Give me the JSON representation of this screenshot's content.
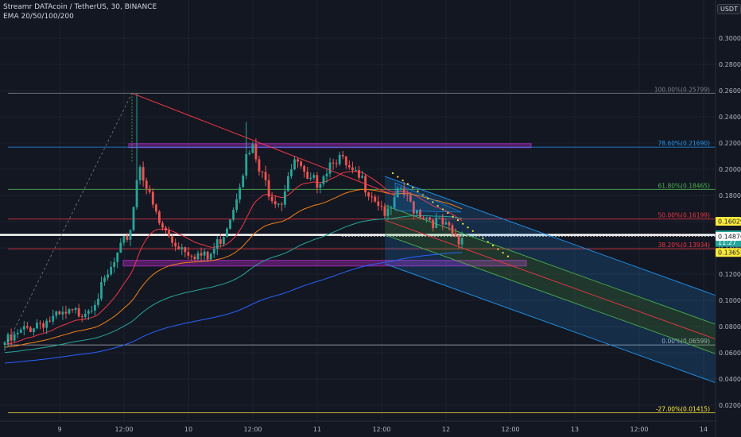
{
  "header": {
    "symbol_line": "Streamr DATAcoin / TetherUS, 30, BINANCE",
    "indicator_line": "EMA 20/50/100/200"
  },
  "currency_button": "USDT",
  "chart_data": {
    "type": "candlestick",
    "title": "Streamr DATAcoin / TetherUS, 30, BINANCE",
    "indicator": "EMA 20/50/100/200",
    "ylim": [
      0,
      0.32
    ],
    "y_ticks": [
      "0.02000",
      "0.04000",
      "0.06000",
      "0.08000",
      "0.10000",
      "0.12000",
      "0.14000",
      "0.16000",
      "0.18000",
      "0.20000",
      "0.22000",
      "0.24000",
      "0.26000",
      "0.28000",
      "0.30000"
    ],
    "x_ticks": [
      "9",
      "12:00",
      "10",
      "12:00",
      "11",
      "12:00",
      "12",
      "12:00",
      "13",
      "12:00",
      "14"
    ],
    "fib_levels": [
      {
        "label": "100.00%(0.25799)",
        "value": 0.25799,
        "color": "#787b86"
      },
      {
        "label": "78.60%(0.21690)",
        "value": 0.2169,
        "color": "#2196f3"
      },
      {
        "label": "61.80%(0.18465)",
        "value": 0.18465,
        "color": "#4caf50"
      },
      {
        "label": "50.00%(0.16199)",
        "value": 0.16199,
        "color": "#f23645"
      },
      {
        "label": "38.20%(0.13934)",
        "value": 0.13934,
        "color": "#f23645"
      },
      {
        "label": "0.00%(0.06599)",
        "value": 0.06599,
        "color": "#b2b5be"
      },
      {
        "label": "-27.00%(0.01415)",
        "value": 0.01415,
        "color": "#ffeb3b"
      }
    ],
    "price_badges": [
      {
        "label": "0.16029",
        "value": 0.16029,
        "bg": "#ffeb3b",
        "fg": "#131722"
      },
      {
        "label": "0.14991",
        "value": 0.14991,
        "bg": "#26a69a",
        "fg": "#ffffff"
      },
      {
        "label": "11:27",
        "value": 0.1442,
        "bg": "#26a69a",
        "fg": "#ffffff"
      },
      {
        "label": "0.14876",
        "value": 0.14876,
        "bg": "#ffffff",
        "fg": "#131722"
      },
      {
        "label": "0.13655",
        "value": 0.13655,
        "bg": "#ffeb3b",
        "fg": "#131722"
      }
    ],
    "current_price": 0.14991,
    "colors": {
      "up": "#26a69a",
      "down": "#ef5350",
      "ema20": "#f23645",
      "ema50": "#f57f17",
      "ema100": "#26a69a",
      "ema200": "#2962ff"
    }
  }
}
